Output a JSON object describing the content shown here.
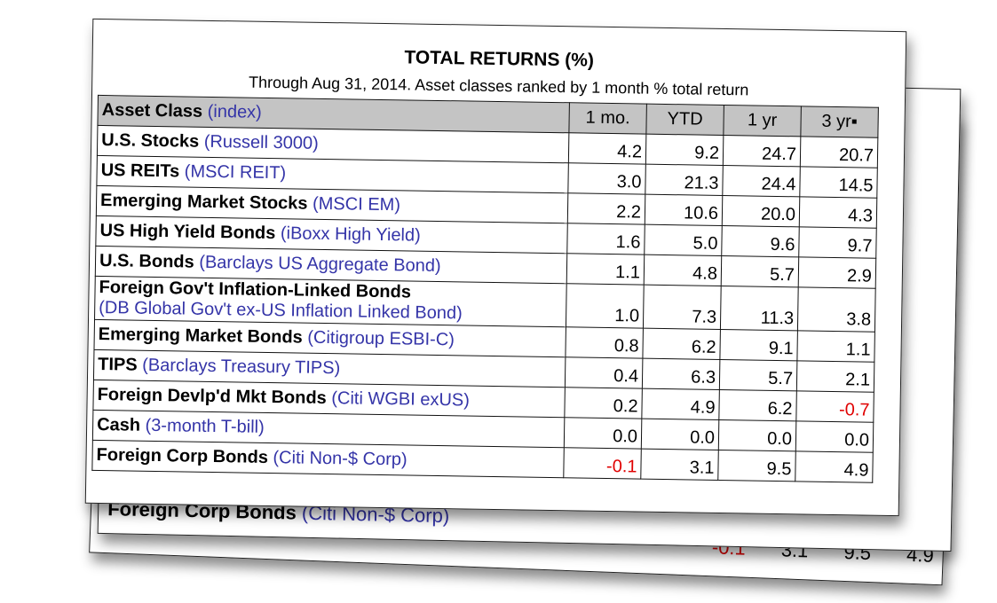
{
  "header": {
    "title": "TOTAL RETURNS (%)",
    "subtitle": "Through Aug 31, 2014. Asset classes ranked by 1 month % total return"
  },
  "table": {
    "columns": [
      "Asset Class",
      "(index)",
      "1 mo.",
      "YTD",
      "1 yr",
      "3 yr▪"
    ],
    "negative_color": "#e00000",
    "rows": [
      [
        "U.S. Stocks",
        "(Russell 3000)",
        "4.2",
        "9.2",
        "24.7",
        "20.7"
      ],
      [
        "US REITs",
        "(MSCI REIT)",
        "3.0",
        "21.3",
        "24.4",
        "14.5"
      ],
      [
        "Emerging Market Stocks",
        "(MSCI EM)",
        "2.2",
        "10.6",
        "20.0",
        "4.3"
      ],
      [
        "US High Yield Bonds",
        "(iBoxx High Yield)",
        "1.6",
        "5.0",
        "9.6",
        "9.7"
      ],
      [
        "U.S. Bonds",
        "(Barclays US Aggregate Bond)",
        "1.1",
        "4.8",
        "5.7",
        "2.9"
      ],
      [
        "Foreign Gov't Inflation-Linked Bonds",
        "(DB Global Gov't ex-US Inflation Linked Bond)",
        "1.0",
        "7.3",
        "11.3",
        "3.8"
      ],
      [
        "Emerging Market Bonds",
        "(Citigroup ESBI-C)",
        "0.8",
        "6.2",
        "9.1",
        "1.1"
      ],
      [
        "TIPS",
        "(Barclays Treasury TIPS)",
        "0.4",
        "6.3",
        "5.7",
        "2.1"
      ],
      [
        "Foreign Devlp'd Mkt Bonds",
        "(Citi WGBI exUS)",
        "0.2",
        "4.9",
        "6.2",
        "-0.7"
      ],
      [
        "Cash",
        "(3-month T-bill)",
        "0.0",
        "0.0",
        "0.0",
        "0.0"
      ],
      [
        "Foreign Corp Bonds",
        "(Citi Non-$ Corp)",
        "-0.1",
        "3.1",
        "9.5",
        "4.9"
      ]
    ]
  },
  "back_pages": {
    "row_label": [
      "Foreign Corp Bonds",
      "(Citi Non-$ Corp)"
    ],
    "row_values": [
      "-0.1",
      "3.1",
      "9.5",
      "4.9"
    ]
  }
}
